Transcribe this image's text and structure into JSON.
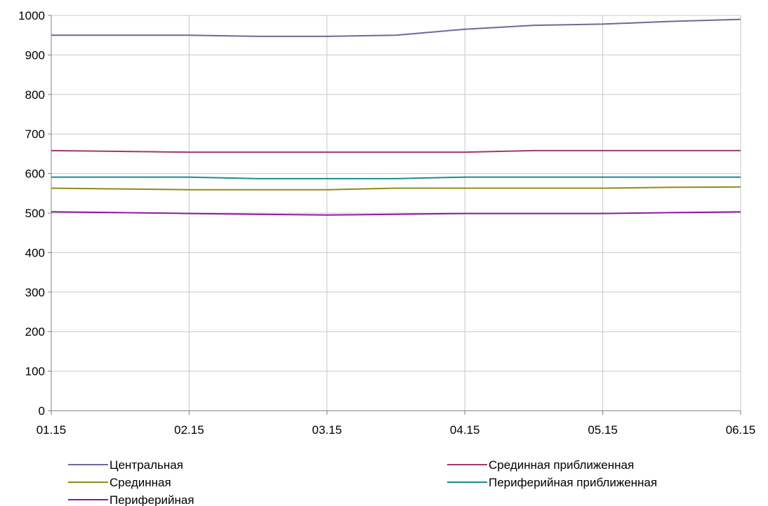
{
  "chart_data": {
    "type": "line",
    "x": [
      "01.15",
      "",
      "02.15",
      "",
      "03.15",
      "",
      "04.15",
      "",
      "05.15",
      "",
      "06.15"
    ],
    "x_tick_labels": [
      "01.15",
      "02.15",
      "03.15",
      "04.15",
      "05.15",
      "06.15"
    ],
    "ylim": [
      0,
      1000
    ],
    "y_ticks": [
      0,
      100,
      200,
      300,
      400,
      500,
      600,
      700,
      800,
      900,
      1000
    ],
    "grid": {
      "vertical": true,
      "horizontal": true
    },
    "legend_position": "bottom",
    "series": [
      {
        "name": "Центральная",
        "color": "#6a6a9c",
        "values": [
          950,
          950,
          950,
          947,
          947,
          950,
          965,
          975,
          978,
          985,
          990
        ]
      },
      {
        "name": "Срединная приближенная",
        "color": "#9c3a6c",
        "values": [
          658,
          656,
          654,
          654,
          654,
          654,
          654,
          658,
          658,
          658,
          658
        ]
      },
      {
        "name": "Срединная",
        "color": "#8c8c1a",
        "values": [
          563,
          561,
          559,
          559,
          559,
          563,
          563,
          563,
          563,
          565,
          566
        ]
      },
      {
        "name": "Периферийная приближенная",
        "color": "#1a8c8c",
        "values": [
          591,
          591,
          591,
          587,
          587,
          587,
          591,
          591,
          591,
          591,
          591
        ]
      },
      {
        "name": "Периферийная",
        "color": "#8c1a9c",
        "values": [
          503,
          501,
          499,
          497,
          495,
          497,
          499,
          499,
          499,
          501,
          503
        ]
      }
    ]
  }
}
